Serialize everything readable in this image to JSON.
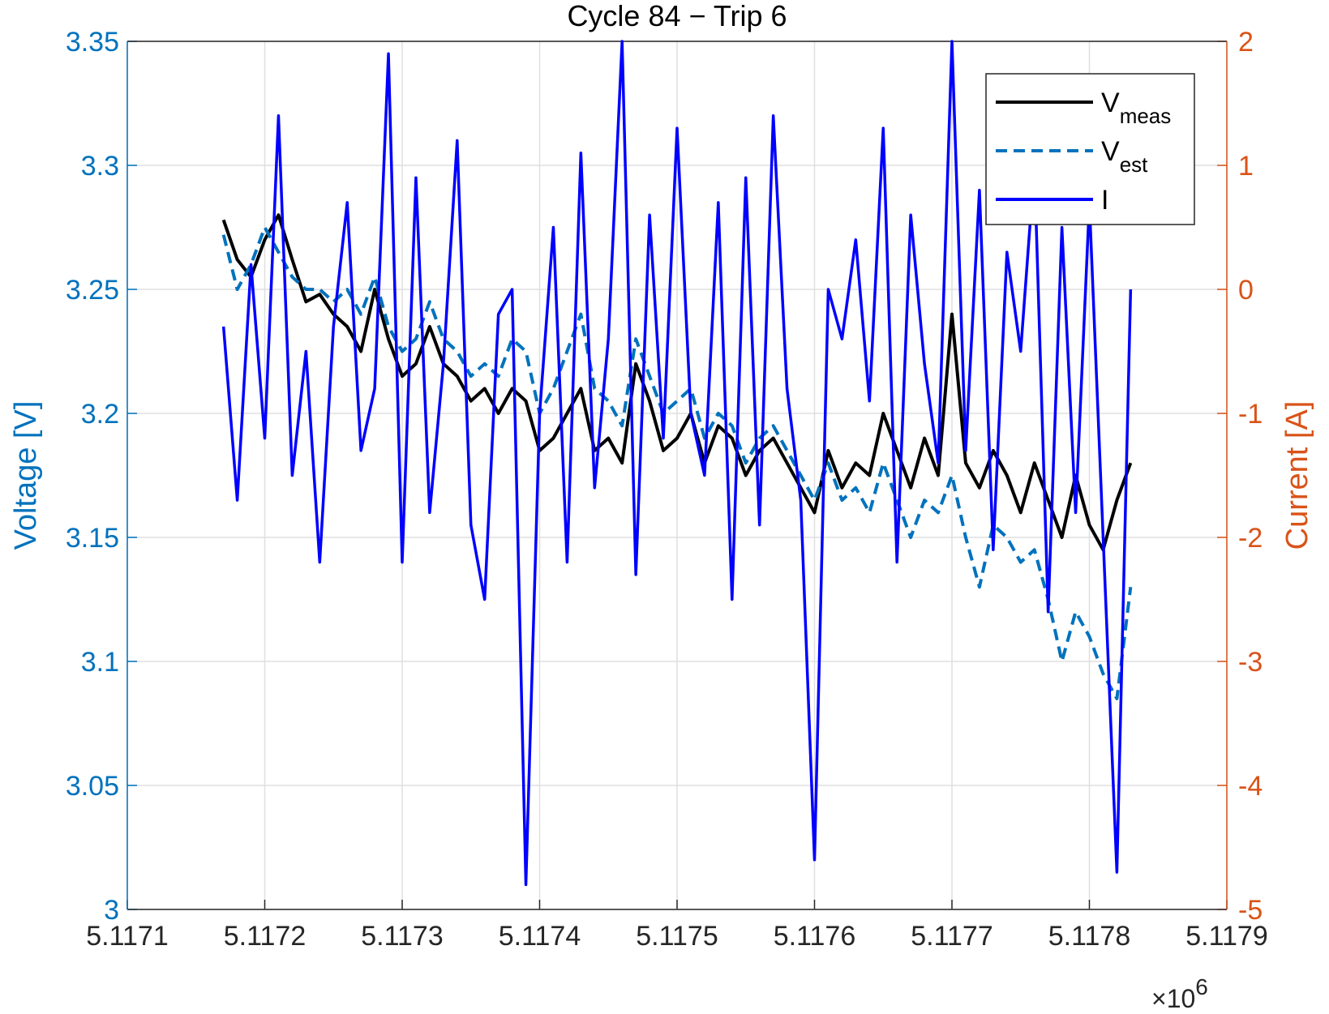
{
  "chart_data": {
    "type": "line",
    "title": "Cycle 84 − Trip 6",
    "ylabel": "Voltage [V]",
    "y2label": "Current [A]",
    "x_multiplier": "×10",
    "x_multiplier_power": "6",
    "xlim": [
      5.1171,
      5.1179
    ],
    "xticks": [
      5.1171,
      5.1172,
      5.1173,
      5.1174,
      5.1175,
      5.1176,
      5.1177,
      5.1178,
      5.1179
    ],
    "ylim": [
      3,
      3.35
    ],
    "yticks": [
      3,
      3.05,
      3.1,
      3.15,
      3.2,
      3.25,
      3.3,
      3.35
    ],
    "y2lim": [
      -5,
      2
    ],
    "y2ticks": [
      -5,
      -4,
      -3,
      -2,
      -1,
      0,
      1,
      2
    ],
    "grid": true,
    "legend": "upper right",
    "ycolor": "#0072bd",
    "y2color": "#d95319",
    "x": [
      5.11717,
      5.11718,
      5.11719,
      5.1172,
      5.11721,
      5.11722,
      5.11723,
      5.11724,
      5.11725,
      5.11726,
      5.11727,
      5.11728,
      5.11729,
      5.1173,
      5.11731,
      5.11732,
      5.11733,
      5.11734,
      5.11735,
      5.11736,
      5.11737,
      5.11738,
      5.11739,
      5.1174,
      5.11741,
      5.11742,
      5.11743,
      5.11744,
      5.11745,
      5.11746,
      5.11747,
      5.11748,
      5.11749,
      5.1175,
      5.11751,
      5.11752,
      5.11753,
      5.11754,
      5.11755,
      5.11756,
      5.11757,
      5.11758,
      5.11759,
      5.1176,
      5.11761,
      5.11762,
      5.11763,
      5.11764,
      5.11765,
      5.11766,
      5.11767,
      5.11768,
      5.11769,
      5.1177,
      5.11771,
      5.11772,
      5.11773,
      5.11774,
      5.11775,
      5.11776,
      5.11777,
      5.11778,
      5.11779,
      5.1178,
      5.11781,
      5.11782,
      5.11783
    ],
    "series": [
      {
        "name": "V",
        "name_sub": "meas",
        "color": "#000000",
        "dash": false,
        "values": [
          3.278,
          3.262,
          3.255,
          3.27,
          3.28,
          3.262,
          3.245,
          3.248,
          3.24,
          3.235,
          3.225,
          3.25,
          3.23,
          3.215,
          3.22,
          3.235,
          3.22,
          3.215,
          3.205,
          3.21,
          3.2,
          3.21,
          3.205,
          3.185,
          3.19,
          3.2,
          3.21,
          3.185,
          3.19,
          3.18,
          3.22,
          3.205,
          3.185,
          3.19,
          3.2,
          3.18,
          3.195,
          3.19,
          3.175,
          3.185,
          3.19,
          3.18,
          3.17,
          3.16,
          3.185,
          3.17,
          3.18,
          3.175,
          3.2,
          3.185,
          3.17,
          3.19,
          3.175,
          3.24,
          3.18,
          3.17,
          3.185,
          3.175,
          3.16,
          3.18,
          3.165,
          3.15,
          3.175,
          3.155,
          3.145,
          3.165,
          3.18
        ]
      },
      {
        "name": "V",
        "name_sub": "est",
        "color": "#0072bd",
        "dash": true,
        "values": [
          3.272,
          3.25,
          3.26,
          3.275,
          3.265,
          3.255,
          3.25,
          3.25,
          3.245,
          3.25,
          3.24,
          3.255,
          3.235,
          3.225,
          3.23,
          3.245,
          3.23,
          3.225,
          3.215,
          3.22,
          3.215,
          3.23,
          3.225,
          3.2,
          3.21,
          3.225,
          3.24,
          3.21,
          3.205,
          3.195,
          3.23,
          3.215,
          3.2,
          3.205,
          3.21,
          3.19,
          3.2,
          3.195,
          3.18,
          3.19,
          3.195,
          3.185,
          3.175,
          3.165,
          3.18,
          3.165,
          3.17,
          3.16,
          3.18,
          3.165,
          3.15,
          3.165,
          3.16,
          3.175,
          3.15,
          3.13,
          3.155,
          3.15,
          3.14,
          3.145,
          3.125,
          3.1,
          3.12,
          3.11,
          3.095,
          3.085,
          3.13
        ]
      },
      {
        "name": "I",
        "color": "#0000ff",
        "dash": false,
        "axis": "y2",
        "values": [
          -0.3,
          -1.7,
          0.2,
          -1.2,
          1.4,
          -1.5,
          -0.5,
          -2.2,
          -0.3,
          0.7,
          -1.3,
          -0.8,
          1.9,
          -2.2,
          0.9,
          -1.8,
          -0.6,
          1.2,
          -1.9,
          -2.5,
          -0.2,
          0,
          -4.8,
          -1,
          0.5,
          -2.2,
          1.1,
          -1.6,
          -0.4,
          2,
          -2.3,
          0.6,
          -1.2,
          1.3,
          -1,
          -1.5,
          0.7,
          -2.5,
          0.9,
          -1.9,
          1.4,
          -0.8,
          -1.7,
          -4.6,
          0,
          -0.4,
          0.4,
          -0.9,
          1.3,
          -2.2,
          0.6,
          -0.6,
          -1.4,
          2,
          -1.3,
          0.8,
          -2.1,
          0.3,
          -0.5,
          1,
          -2.6,
          0.5,
          -1.8,
          0.7,
          -2,
          -4.7,
          0
        ]
      }
    ]
  }
}
